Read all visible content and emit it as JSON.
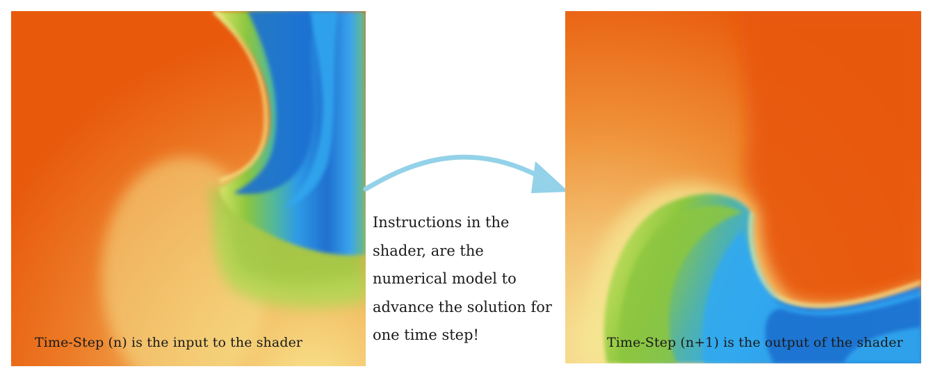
{
  "left_panel": {
    "caption": "Time-Step (n) is the input to the shader"
  },
  "right_panel": {
    "caption": "Time-Step (n+1) is the output of the shader"
  },
  "instructions": {
    "lines": [
      "Instructions in the",
      "shader, are the",
      "numerical model to",
      "advance the solution for",
      "one time step!"
    ]
  },
  "colors": {
    "orange": "#e8590c",
    "light_orange": "#f0933d",
    "yellow": "#f6e08a",
    "pale_yellow": "#f8f3a6",
    "green": "#8cc63f",
    "cyan": "#33a9f0",
    "blue": "#1f6fd0",
    "arrow": "#93d2e8"
  },
  "icons": {
    "arrow": "curved-arrow-right-icon"
  }
}
